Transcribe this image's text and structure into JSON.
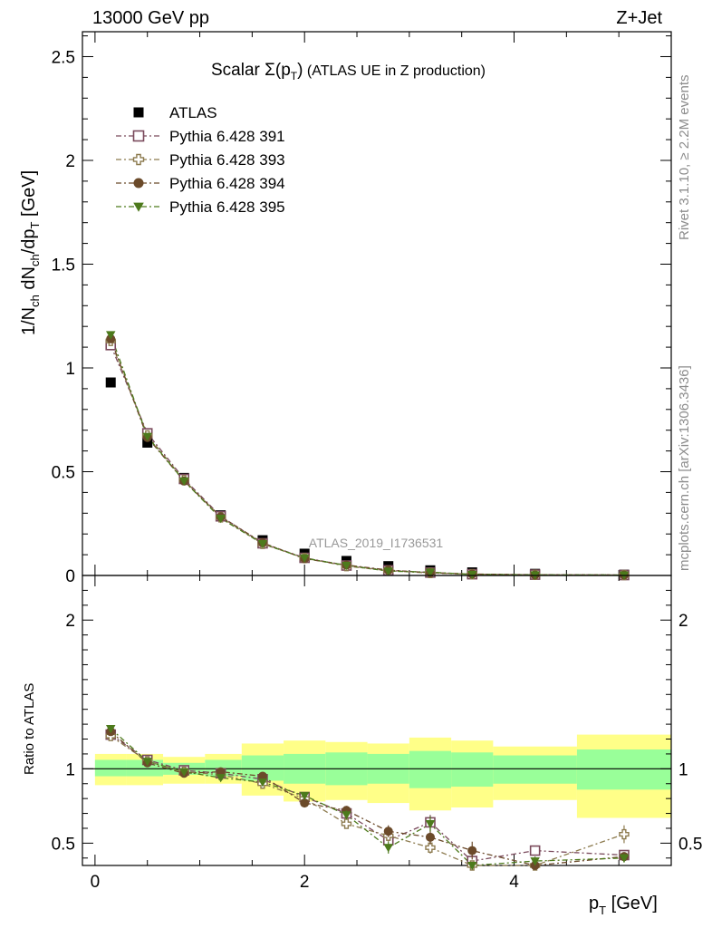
{
  "header": {
    "left": "13000 GeV pp",
    "right": "Z+Jet"
  },
  "side_labels": {
    "rivet": "Rivet 3.1.10, ≥ 2.2M events",
    "mcplots": "mcplots.cern.ch [arXiv:1306.3436]"
  },
  "plot_title": {
    "main": "Scalar Σ(p",
    "sub": "T",
    "close": ")",
    "rest": " (ATLAS UE in Z production)"
  },
  "watermark": "ATLAS_2019_I1736531",
  "colors": {
    "atlas": "#000000",
    "p391": "#7a4a5c",
    "p393": "#8c7a4e",
    "p394": "#6b4a2a",
    "p395": "#4d7a1c",
    "band_inner": "#99ff99",
    "band_outer": "#ffff88"
  },
  "chart_data": [
    {
      "type": "scatter",
      "panel": "main",
      "ylabel_parts": [
        "1/N",
        "ch",
        " dN",
        "ch",
        "/dp",
        "T",
        " [GeV]"
      ],
      "xlim": [
        -0.12,
        5.5
      ],
      "ylim": [
        0,
        2.62
      ],
      "x_ticks": [
        0,
        2,
        4
      ],
      "y_ticks": [
        {
          "v": 0,
          "label": "0"
        },
        {
          "v": 0.5,
          "label": "0.5"
        },
        {
          "v": 1,
          "label": "1"
        },
        {
          "v": 1.5,
          "label": "1.5"
        },
        {
          "v": 2,
          "label": "2"
        },
        {
          "v": 2.5,
          "label": "2.5"
        }
      ],
      "legend_position": "top-left",
      "series": [
        {
          "key": "atlas",
          "name": "ATLAS",
          "marker": "square-filled",
          "color": "#000000",
          "line": false,
          "x": [
            0.15,
            0.5,
            0.85,
            1.2,
            1.6,
            2.0,
            2.4,
            2.8,
            3.2,
            3.6,
            4.2,
            5.05
          ],
          "y": [
            0.93,
            0.64,
            0.47,
            0.29,
            0.17,
            0.105,
            0.07,
            0.045,
            0.025,
            0.015,
            0.008,
            0.004
          ]
        },
        {
          "key": "p391",
          "name": "Pythia 6.428 391",
          "marker": "square-open",
          "color": "#7a4a5c",
          "line": true,
          "x": [
            0.15,
            0.5,
            0.85,
            1.2,
            1.6,
            2.0,
            2.4,
            2.8,
            3.2,
            3.6,
            4.2,
            5.05
          ],
          "y": [
            1.11,
            0.685,
            0.465,
            0.285,
            0.155,
            0.085,
            0.048,
            0.025,
            0.014,
            0.006,
            0.004,
            0.002
          ]
        },
        {
          "key": "p393",
          "name": "Pythia 6.428 393",
          "marker": "cross-open",
          "color": "#8c7a4e",
          "line": true,
          "x": [
            0.15,
            0.5,
            0.85,
            1.2,
            1.6,
            2.0,
            2.4,
            2.8,
            3.2,
            3.6,
            4.2,
            5.05
          ],
          "y": [
            1.13,
            0.675,
            0.46,
            0.28,
            0.152,
            0.084,
            0.045,
            0.023,
            0.012,
            0.006,
            0.003,
            0.002
          ]
        },
        {
          "key": "p394",
          "name": "Pythia 6.428 394",
          "marker": "circle-filled",
          "color": "#6b4a2a",
          "line": true,
          "x": [
            0.15,
            0.5,
            0.85,
            1.2,
            1.6,
            2.0,
            2.4,
            2.8,
            3.2,
            3.6,
            4.2,
            5.05
          ],
          "y": [
            1.14,
            0.665,
            0.455,
            0.283,
            0.158,
            0.081,
            0.05,
            0.026,
            0.013,
            0.007,
            0.003,
            0.002
          ]
        },
        {
          "key": "p395",
          "name": "Pythia 6.428 395",
          "marker": "triangle-down-filled",
          "color": "#4d7a1c",
          "line": true,
          "x": [
            0.15,
            0.5,
            0.85,
            1.2,
            1.6,
            2.0,
            2.4,
            2.8,
            3.2,
            3.6,
            4.2,
            5.05
          ],
          "y": [
            1.16,
            0.67,
            0.455,
            0.275,
            0.153,
            0.084,
            0.048,
            0.021,
            0.016,
            0.005,
            0.003,
            0.002
          ]
        }
      ]
    },
    {
      "type": "scatter",
      "panel": "ratio",
      "ylabel": "Ratio to ATLAS",
      "xlabel_parts": [
        "p",
        "T",
        " [GeV]"
      ],
      "xlim": [
        -0.12,
        5.5
      ],
      "ylim": [
        0.35,
        2.3
      ],
      "x_ticks": [
        0,
        2,
        4
      ],
      "y_ticks": [
        {
          "v": 0.5,
          "label": "0.5"
        },
        {
          "v": 1,
          "label": "1"
        },
        {
          "v": 2,
          "label": "2"
        }
      ],
      "bands": {
        "edges": [
          0.0,
          0.3,
          0.65,
          1.05,
          1.4,
          1.8,
          2.2,
          2.6,
          3.0,
          3.4,
          3.8,
          4.6,
          5.5
        ],
        "inner": [
          [
            0.95,
            1.06
          ],
          [
            0.95,
            1.06
          ],
          [
            0.96,
            1.04
          ],
          [
            0.95,
            1.06
          ],
          [
            0.92,
            1.09
          ],
          [
            0.9,
            1.1
          ],
          [
            0.89,
            1.11
          ],
          [
            0.9,
            1.1
          ],
          [
            0.87,
            1.12
          ],
          [
            0.88,
            1.11
          ],
          [
            0.9,
            1.09
          ],
          [
            0.86,
            1.13
          ]
        ],
        "outer": [
          [
            0.89,
            1.1
          ],
          [
            0.89,
            1.1
          ],
          [
            0.9,
            1.08
          ],
          [
            0.9,
            1.1
          ],
          [
            0.82,
            1.17
          ],
          [
            0.78,
            1.19
          ],
          [
            0.79,
            1.18
          ],
          [
            0.77,
            1.17
          ],
          [
            0.72,
            1.21
          ],
          [
            0.74,
            1.19
          ],
          [
            0.79,
            1.15
          ],
          [
            0.67,
            1.23
          ]
        ]
      },
      "reference_y": 1,
      "series": [
        {
          "key": "p391",
          "name": "Pythia 6.428 391",
          "marker": "square-open",
          "color": "#7a4a5c",
          "x": [
            0.15,
            0.5,
            0.85,
            1.2,
            1.6,
            2.0,
            2.4,
            2.8,
            3.2,
            3.6,
            4.2,
            5.05
          ],
          "y": [
            1.23,
            1.06,
            0.99,
            0.97,
            0.93,
            0.81,
            0.7,
            0.52,
            0.64,
            0.38,
            0.45,
            0.42
          ],
          "err": [
            0.02,
            0.01,
            0.01,
            0.01,
            0.01,
            0.01,
            0.02,
            0.04,
            0.05,
            0.06,
            0.03,
            0.03
          ]
        },
        {
          "key": "p393",
          "name": "Pythia 6.428 393",
          "marker": "cross-open",
          "color": "#8c7a4e",
          "x": [
            0.15,
            0.5,
            0.85,
            1.2,
            1.6,
            2.0,
            2.4,
            2.8,
            3.2,
            3.6,
            4.2,
            5.05
          ],
          "y": [
            1.22,
            1.05,
            0.98,
            0.96,
            0.9,
            0.8,
            0.63,
            0.55,
            0.47,
            0.31,
            0.34,
            0.56
          ],
          "err": [
            0.02,
            0.01,
            0.01,
            0.01,
            0.01,
            0.02,
            0.03,
            0.04,
            0.04,
            0.06,
            0.03,
            0.06
          ]
        },
        {
          "key": "p394",
          "name": "Pythia 6.428 394",
          "marker": "circle-filled",
          "color": "#6b4a2a",
          "x": [
            0.15,
            0.5,
            0.85,
            1.2,
            1.6,
            2.0,
            2.4,
            2.8,
            3.2,
            3.6,
            4.2,
            5.05
          ],
          "y": [
            1.25,
            1.04,
            0.97,
            0.98,
            0.95,
            0.77,
            0.72,
            0.58,
            0.54,
            0.45,
            0.31,
            0.41
          ],
          "err": [
            0.02,
            0.01,
            0.01,
            0.01,
            0.01,
            0.02,
            0.03,
            0.04,
            0.05,
            0.06,
            0.03,
            0.03
          ]
        },
        {
          "key": "p395",
          "name": "Pythia 6.428 395",
          "marker": "triangle-down-filled",
          "color": "#4d7a1c",
          "x": [
            0.15,
            0.5,
            0.85,
            1.2,
            1.6,
            2.0,
            2.4,
            2.8,
            3.2,
            3.6,
            4.2,
            5.05
          ],
          "y": [
            1.27,
            1.05,
            0.98,
            0.94,
            0.91,
            0.82,
            0.69,
            0.47,
            0.63,
            0.3,
            0.38,
            0.4
          ],
          "err": [
            0.02,
            0.01,
            0.01,
            0.01,
            0.01,
            0.02,
            0.03,
            0.04,
            0.05,
            0.06,
            0.03,
            0.03
          ]
        }
      ]
    }
  ]
}
